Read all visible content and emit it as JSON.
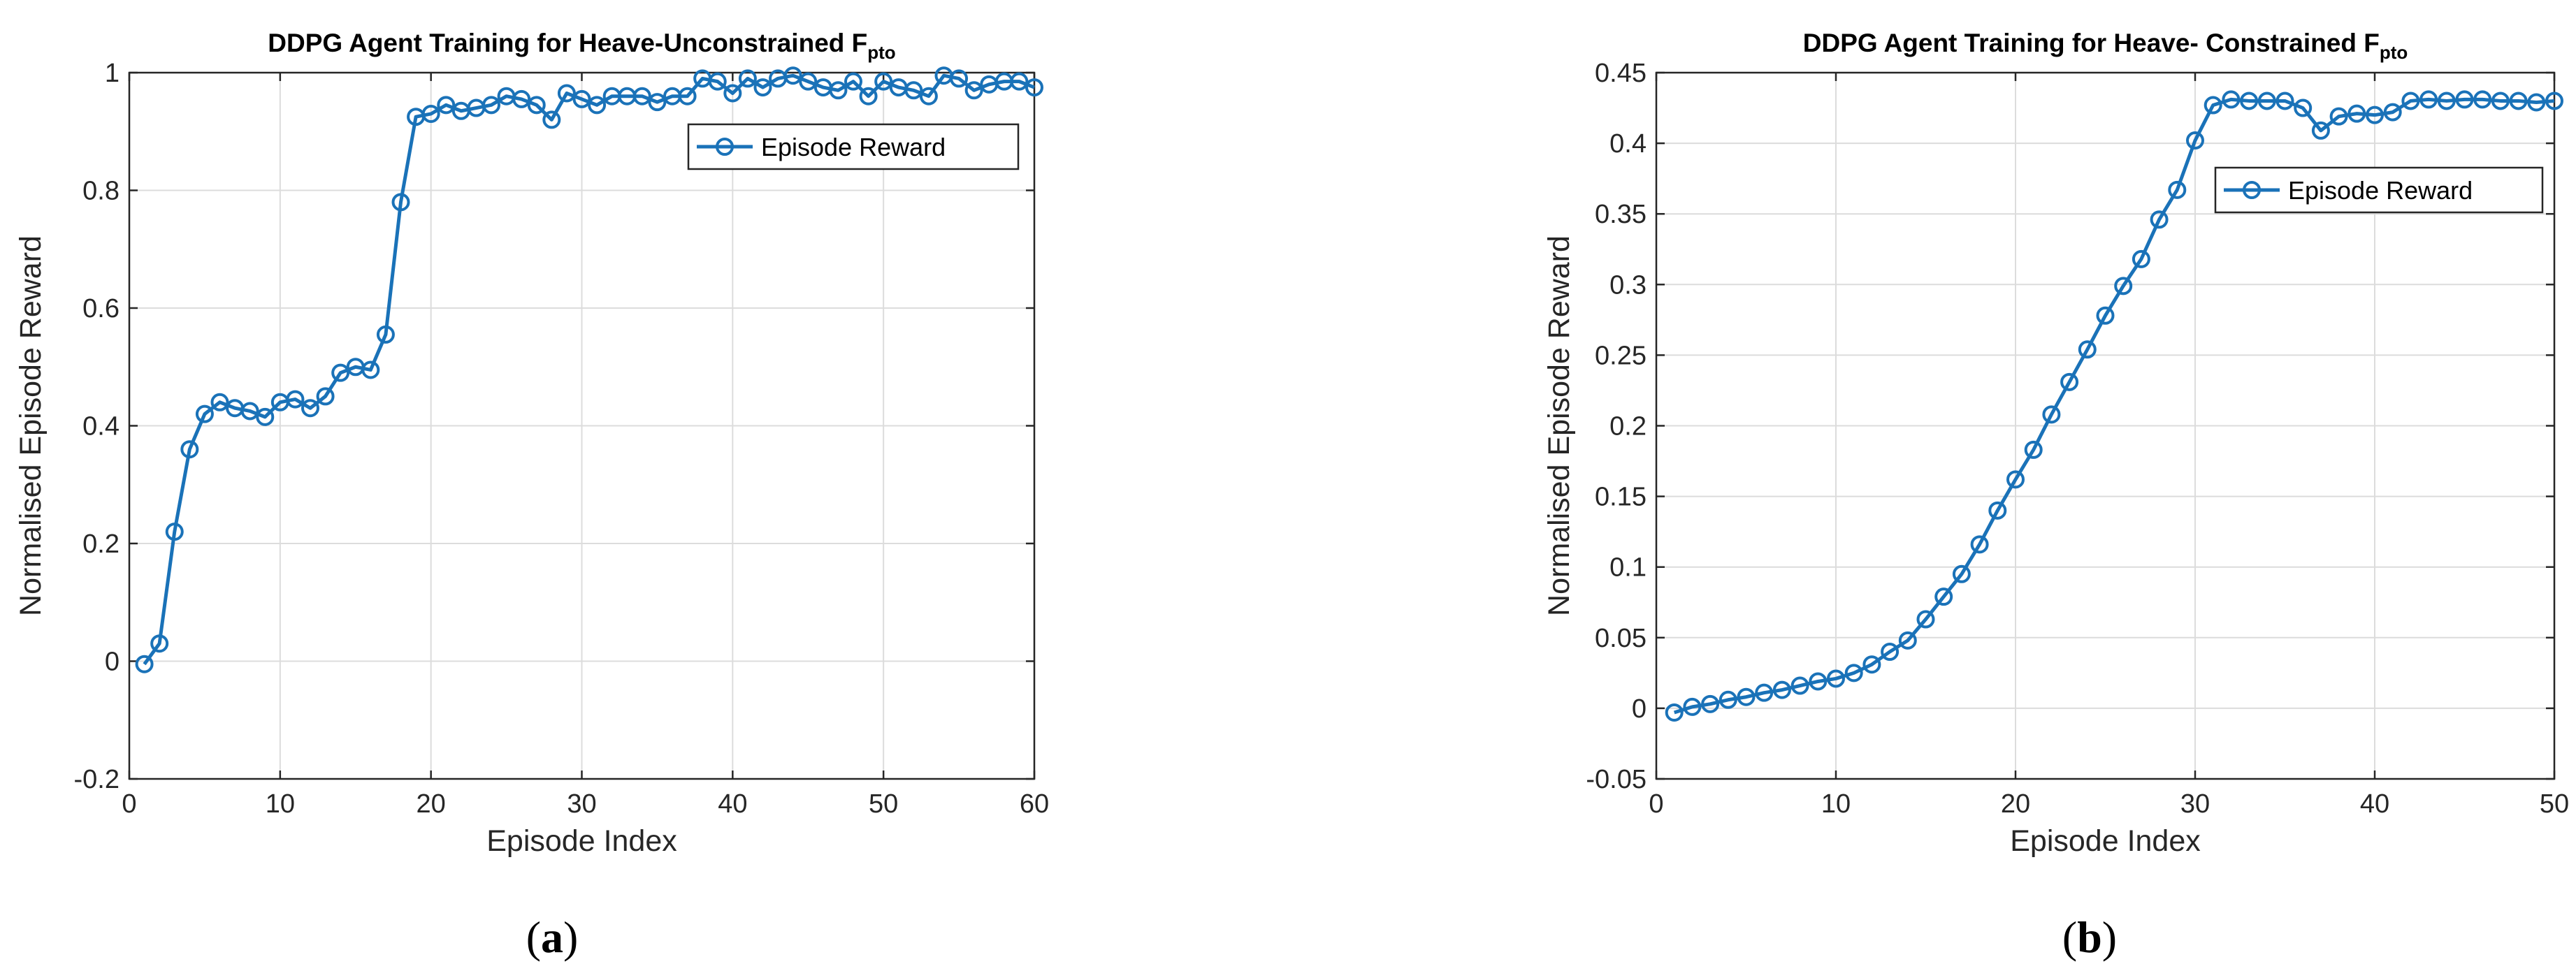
{
  "chart_data": [
    {
      "type": "line",
      "title": "DDPG Agent Training for Heave-Unconstrained F",
      "title_subscript": "pto",
      "xlabel": "Episode Index",
      "ylabel": "Normalised Episode Reward",
      "xlim": [
        0,
        60
      ],
      "ylim": [
        -0.2,
        1
      ],
      "xticks": [
        0,
        10,
        20,
        30,
        40,
        50,
        60
      ],
      "yticks": [
        -0.2,
        0,
        0.2,
        0.4,
        0.6,
        0.8,
        1
      ],
      "ytick_labels": [
        "-0.2",
        "0",
        "0.2",
        "0.4",
        "0.6",
        "0.8",
        "1"
      ],
      "grid": true,
      "legend_position": "top-right",
      "caption": "a",
      "series": [
        {
          "name": "Episode Reward",
          "color": "#1a72b8",
          "marker": "circle",
          "x": [
            1,
            2,
            3,
            4,
            5,
            6,
            7,
            8,
            9,
            10,
            11,
            12,
            13,
            14,
            15,
            16,
            17,
            18,
            19,
            20,
            21,
            22,
            23,
            24,
            25,
            26,
            27,
            28,
            29,
            30,
            31,
            32,
            33,
            34,
            35,
            36,
            37,
            38,
            39,
            40,
            41,
            42,
            43,
            44,
            45,
            46,
            47,
            48,
            49,
            50,
            51,
            52,
            53,
            54,
            55,
            56,
            57,
            58,
            59,
            60
          ],
          "y": [
            -0.005,
            0.03,
            0.22,
            0.36,
            0.42,
            0.44,
            0.43,
            0.425,
            0.415,
            0.44,
            0.445,
            0.43,
            0.45,
            0.49,
            0.5,
            0.495,
            0.555,
            0.78,
            0.925,
            0.93,
            0.945,
            0.935,
            0.94,
            0.945,
            0.96,
            0.955,
            0.945,
            0.92,
            0.965,
            0.955,
            0.945,
            0.96,
            0.96,
            0.96,
            0.95,
            0.96,
            0.96,
            0.99,
            0.985,
            0.965,
            0.99,
            0.975,
            0.99,
            0.995,
            0.985,
            0.975,
            0.97,
            0.985,
            0.96,
            0.985,
            0.975,
            0.97,
            0.96,
            0.995,
            0.99,
            0.97,
            0.98,
            0.985,
            0.985,
            0.975
          ]
        }
      ]
    },
    {
      "type": "line",
      "title": "DDPG Agent Training for Heave- Constrained F",
      "title_subscript": "pto",
      "xlabel": "Episode Index",
      "ylabel": "Normalised Episode Reward",
      "xlim": [
        0,
        50
      ],
      "ylim": [
        -0.05,
        0.45
      ],
      "xticks": [
        0,
        10,
        20,
        30,
        40,
        50
      ],
      "yticks": [
        -0.05,
        0,
        0.05,
        0.1,
        0.15,
        0.2,
        0.25,
        0.3,
        0.35,
        0.4,
        0.45
      ],
      "ytick_labels": [
        "-0.05",
        "0",
        "0.05",
        "0.1",
        "0.15",
        "0.2",
        "0.25",
        "0.3",
        "0.35",
        "0.4",
        "0.45"
      ],
      "grid": true,
      "legend_position": "top-right",
      "caption": "b",
      "series": [
        {
          "name": "Episode Reward",
          "color": "#1a72b8",
          "marker": "circle",
          "x": [
            1,
            2,
            3,
            4,
            5,
            6,
            7,
            8,
            9,
            10,
            11,
            12,
            13,
            14,
            15,
            16,
            17,
            18,
            19,
            20,
            21,
            22,
            23,
            24,
            25,
            26,
            27,
            28,
            29,
            30,
            31,
            32,
            33,
            34,
            35,
            36,
            37,
            38,
            39,
            40,
            41,
            42,
            43,
            44,
            45,
            46,
            47,
            48,
            49,
            50
          ],
          "y": [
            -0.003,
            0.001,
            0.003,
            0.006,
            0.008,
            0.011,
            0.013,
            0.016,
            0.019,
            0.021,
            0.025,
            0.031,
            0.04,
            0.048,
            0.063,
            0.079,
            0.095,
            0.116,
            0.14,
            0.162,
            0.183,
            0.208,
            0.231,
            0.254,
            0.278,
            0.299,
            0.318,
            0.346,
            0.367,
            0.402,
            0.427,
            0.431,
            0.43,
            0.43,
            0.43,
            0.425,
            0.409,
            0.419,
            0.421,
            0.42,
            0.422,
            0.43,
            0.431,
            0.43,
            0.431,
            0.431,
            0.43,
            0.43,
            0.429,
            0.43
          ]
        }
      ]
    }
  ]
}
